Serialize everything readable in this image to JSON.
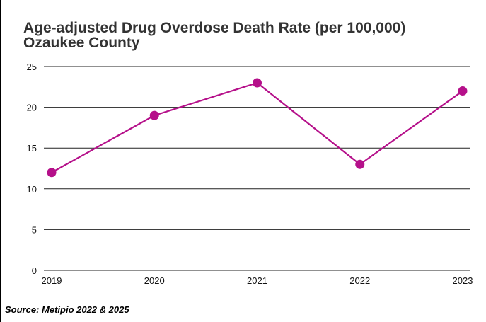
{
  "chart_data": {
    "type": "line",
    "title_lines": [
      "Age-adjusted Drug Overdose Death Rate (per 100,000)",
      "Ozaukee County"
    ],
    "categories": [
      "2019",
      "2020",
      "2021",
      "2022",
      "2023"
    ],
    "series": [
      {
        "values": [
          12,
          19,
          23,
          13,
          22
        ]
      }
    ],
    "ylim": [
      0,
      25
    ],
    "yticks": [
      "0",
      "5",
      "10",
      "15",
      "20",
      "25"
    ],
    "xlabel": "",
    "ylabel": "",
    "grid": true,
    "legend": "none",
    "series_color": "#b5108a",
    "gridline_color": "#222222"
  },
  "source": "Source: Metipio 2022 & 2025"
}
